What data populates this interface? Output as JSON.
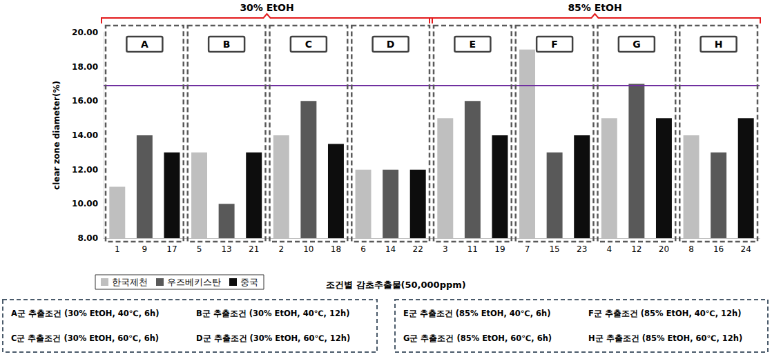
{
  "chart_data": {
    "type": "bar",
    "y_label": "clear zone diameter(%)",
    "x_label": "조건별 감초추출물(50,000ppm)",
    "categories": [
      "1",
      "9",
      "17",
      "5",
      "13",
      "21",
      "2",
      "10",
      "18",
      "6",
      "14",
      "22",
      "3",
      "11",
      "19",
      "7",
      "15",
      "23",
      "4",
      "12",
      "20",
      "8",
      "16",
      "24"
    ],
    "series": [
      {
        "name": "한국제천",
        "color": "#bfbfbf",
        "values": [
          11,
          null,
          null,
          13,
          null,
          null,
          14,
          null,
          null,
          12,
          null,
          null,
          15,
          null,
          null,
          19,
          null,
          null,
          15,
          null,
          null,
          14,
          null,
          null
        ]
      },
      {
        "name": "우즈베키스탄",
        "color": "#595959",
        "values": [
          null,
          14,
          null,
          null,
          10,
          null,
          null,
          16,
          null,
          null,
          12,
          null,
          null,
          16,
          null,
          null,
          13,
          null,
          null,
          17,
          null,
          null,
          13,
          null
        ]
      },
      {
        "name": "중국",
        "color": "#0d0d0d",
        "values": [
          null,
          null,
          13,
          null,
          null,
          13,
          null,
          null,
          13.5,
          null,
          null,
          12,
          null,
          null,
          14,
          null,
          null,
          14,
          null,
          null,
          15,
          null,
          null,
          15
        ]
      }
    ],
    "ylim": [
      8,
      20
    ],
    "yticks": [
      {
        "value": 8,
        "label": "8.00"
      },
      {
        "value": 10,
        "label": "10.00"
      },
      {
        "value": 12,
        "label": "12.00"
      },
      {
        "value": 14,
        "label": "14.00"
      },
      {
        "value": 16,
        "label": "16.00"
      },
      {
        "value": 18,
        "label": "18.00"
      },
      {
        "value": 20,
        "label": "20.00"
      }
    ],
    "grid": false,
    "legend": "bottom left",
    "reference_line": {
      "value": 16.9,
      "color": "#7030a0"
    },
    "groups": [
      {
        "label": "A",
        "condition": "A군 추출조건 (30% EtOH, 40℃, 6h)"
      },
      {
        "label": "B",
        "condition": "B군 추출조건 (30% EtOH, 40℃, 12h)"
      },
      {
        "label": "C",
        "condition": "C군 추출조건 (30% EtOH, 60℃, 6h)"
      },
      {
        "label": "D",
        "condition": "D군 추출조건 (30% EtOH, 60℃, 12h)"
      },
      {
        "label": "E",
        "condition": "E군 추출조건 (85% EtOH, 40℃, 6h)"
      },
      {
        "label": "F",
        "condition": "F군 추출조건 (85% EtOH, 40℃, 12h)"
      },
      {
        "label": "G",
        "condition": "G군 추출조건 (85% EtOH, 60℃, 6h)"
      },
      {
        "label": "H",
        "condition": "H군 추출조건 (85% EtOH, 60℃, 12h)"
      }
    ],
    "solvents": [
      {
        "label": "30% EtOH",
        "groups": [
          "A",
          "B",
          "C",
          "D"
        ]
      },
      {
        "label": "85% EtOH",
        "groups": [
          "E",
          "F",
          "G",
          "H"
        ]
      }
    ]
  }
}
